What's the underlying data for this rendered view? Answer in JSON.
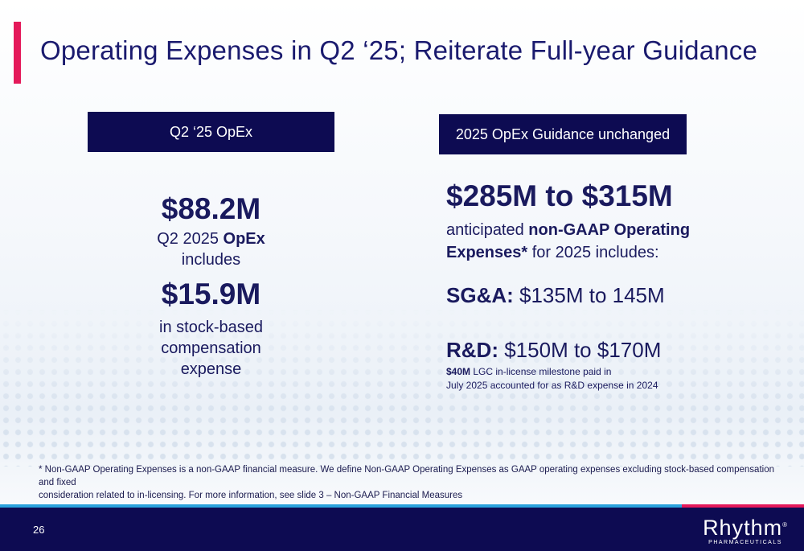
{
  "title": "Operating Expenses in Q2 ‘25; Reiterate Full-year Guidance",
  "left": {
    "header": "Q2 ‘25 OpEx",
    "amount": "$88.2M",
    "line1_pre": "Q2 2025 ",
    "line1_bold": "OpEx",
    "line2": "includes",
    "sbc_amount": "$15.9M",
    "sbc_text_1": "in stock-based",
    "sbc_text_2": "compensation",
    "sbc_text_3": "expense"
  },
  "right": {
    "header": "2025 OpEx Guidance unchanged",
    "range": "$285M to $315M",
    "antic_pre": "anticipated ",
    "antic_bold": "non-GAAP Operating",
    "antic_bold2": "Expenses*",
    "antic_post": " for 2025 includes:",
    "sga_label": "SG&A:",
    "sga_value": " $135M to 145M",
    "rd_label": "R&D:",
    "rd_value": " $150M to $170M",
    "note_bold": "$40M",
    "note_1": " LGC in-license milestone paid in",
    "note_2": "July 2025 accounted for as R&D expense in 2024"
  },
  "footnote_1": "* Non-GAAP Operating Expenses is a non-GAAP financial measure. We define Non-GAAP Operating Expenses as GAAP operating expenses excluding stock-based compensation and fixed",
  "footnote_2": "consideration related to in-licensing. For more information, see slide 3 – Non-GAAP Financial Measures",
  "page_number": "26",
  "logo": {
    "name": "Rhythm",
    "reg": "®",
    "sub": "PHARMACEUTICALS"
  },
  "colors": {
    "navy": "#0d0b52",
    "accent_red": "#e4195a",
    "accent_blue": "#2aa3dd"
  }
}
